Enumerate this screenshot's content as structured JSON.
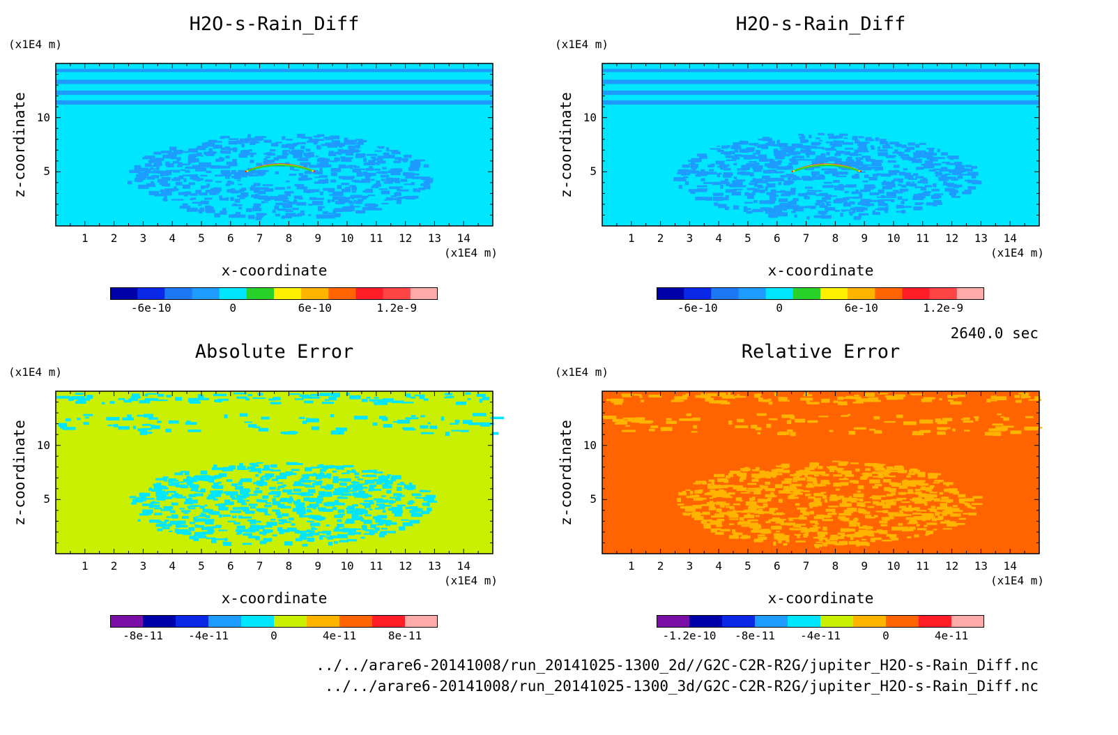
{
  "time_label": "2640.0 sec",
  "file_paths": [
    "../../arare6-20141008/run_20141025-1300_2d//G2C-C2R-R2G/jupiter_H2O-s-Rain_Diff.nc",
    "../../arare6-20141008/run_20141025-1300_3d/G2C-C2R-R2G/jupiter_H2O-s-Rain_Diff.nc"
  ],
  "colors": {
    "purple": "#7a0fa8",
    "navy": "#0000a8",
    "blue": "#0a28e6",
    "mid_blue": "#1e78f5",
    "sky": "#1e9bff",
    "cyan": "#00e6ff",
    "green": "#28d228",
    "yellow_green": "#c8f000",
    "yellow": "#fff000",
    "orange_yellow": "#ffb400",
    "orange": "#ff6400",
    "red": "#ff1e28",
    "red_orange": "#ff4646",
    "pink": "#ffaaaa"
  },
  "chart_data": [
    {
      "type": "heatmap",
      "title": "H2O-s-Rain_Diff",
      "xlabel": "x-coordinate",
      "ylabel": "z-coordinate",
      "x_unit": "(x1E4 m)",
      "y_unit": "(x1E4 m)",
      "xlim": [
        0,
        15
      ],
      "ylim": [
        0,
        15
      ],
      "x_ticks": [
        "1",
        "2",
        "3",
        "4",
        "5",
        "6",
        "7",
        "8",
        "9",
        "10",
        "11",
        "12",
        "13",
        "14"
      ],
      "y_ticks": [
        "5",
        "10"
      ],
      "background_color": "#00e6ff",
      "pattern_color": "#1e9bff",
      "feature": "arc",
      "colorbar": {
        "colors": [
          "#0000a8",
          "#0a28e6",
          "#1e78f5",
          "#1e9bff",
          "#00e6ff",
          "#28d228",
          "#fff000",
          "#ffb400",
          "#ff6400",
          "#ff1e28",
          "#ff4646",
          "#ffaaaa"
        ],
        "tick_labels": [
          "-6e-10",
          "0",
          "6e-10",
          "1.2e-9"
        ],
        "tick_values": [
          -6e-10,
          0,
          6e-10,
          1.2e-09
        ],
        "range": [
          -9e-10,
          1.5e-09
        ]
      }
    },
    {
      "type": "heatmap",
      "title": "H2O-s-Rain_Diff",
      "xlabel": "x-coordinate",
      "ylabel": "z-coordinate",
      "x_unit": "(x1E4 m)",
      "y_unit": "(x1E4 m)",
      "xlim": [
        0,
        15
      ],
      "ylim": [
        0,
        15
      ],
      "x_ticks": [
        "1",
        "2",
        "3",
        "4",
        "5",
        "6",
        "7",
        "8",
        "9",
        "10",
        "11",
        "12",
        "13",
        "14"
      ],
      "y_ticks": [
        "5",
        "10"
      ],
      "background_color": "#00e6ff",
      "pattern_color": "#1e9bff",
      "feature": "arc",
      "colorbar": {
        "colors": [
          "#0000a8",
          "#0a28e6",
          "#1e78f5",
          "#1e9bff",
          "#00e6ff",
          "#28d228",
          "#fff000",
          "#ffb400",
          "#ff6400",
          "#ff1e28",
          "#ff4646",
          "#ffaaaa"
        ],
        "tick_labels": [
          "-6e-10",
          "0",
          "6e-10",
          "1.2e-9"
        ],
        "tick_values": [
          -6e-10,
          0,
          6e-10,
          1.2e-09
        ],
        "range": [
          -9e-10,
          1.5e-09
        ]
      }
    },
    {
      "type": "heatmap",
      "title": "Absolute Error",
      "xlabel": "x-coordinate",
      "ylabel": "z-coordinate",
      "x_unit": "(x1E4 m)",
      "y_unit": "(x1E4 m)",
      "xlim": [
        0,
        15
      ],
      "ylim": [
        0,
        15
      ],
      "x_ticks": [
        "1",
        "2",
        "3",
        "4",
        "5",
        "6",
        "7",
        "8",
        "9",
        "10",
        "11",
        "12",
        "13",
        "14"
      ],
      "y_ticks": [
        "5",
        "10"
      ],
      "background_color": "#c8f000",
      "pattern_color": "#00e6ff",
      "feature": "none",
      "colorbar": {
        "colors": [
          "#7a0fa8",
          "#0000a8",
          "#0a28e6",
          "#1e9bff",
          "#00e6ff",
          "#c8f000",
          "#ffb400",
          "#ff6400",
          "#ff1e28",
          "#ffaaaa"
        ],
        "tick_labels": [
          "-8e-11",
          "-4e-11",
          "0",
          "4e-11",
          "8e-11"
        ],
        "tick_values": [
          -8e-11,
          -4e-11,
          0,
          4e-11,
          8e-11
        ],
        "range": [
          -1e-10,
          1e-10
        ]
      }
    },
    {
      "type": "heatmap",
      "title": "Relative Error",
      "xlabel": "x-coordinate",
      "ylabel": "z-coordinate",
      "x_unit": "(x1E4 m)",
      "y_unit": "(x1E4 m)",
      "xlim": [
        0,
        15
      ],
      "ylim": [
        0,
        15
      ],
      "x_ticks": [
        "1",
        "2",
        "3",
        "4",
        "5",
        "6",
        "7",
        "8",
        "9",
        "10",
        "11",
        "12",
        "13",
        "14"
      ],
      "y_ticks": [
        "5",
        "10"
      ],
      "background_color": "#ff6400",
      "pattern_color": "#ffb400",
      "feature": "none",
      "colorbar": {
        "colors": [
          "#7a0fa8",
          "#0000a8",
          "#0a28e6",
          "#1e9bff",
          "#00e6ff",
          "#c8f000",
          "#ffb400",
          "#ff6400",
          "#ff1e28",
          "#ffaaaa"
        ],
        "tick_labels": [
          "-1.2e-10",
          "-8e-11",
          "-4e-11",
          "0",
          "4e-11"
        ],
        "tick_values": [
          -1.2e-10,
          -8e-11,
          -4e-11,
          0,
          4e-11
        ],
        "range": [
          -1.4e-10,
          6e-11
        ]
      }
    }
  ]
}
